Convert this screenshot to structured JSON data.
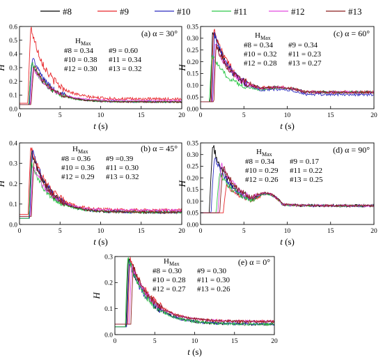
{
  "legend": {
    "entries": [
      {
        "name": "#8",
        "color": "#000000"
      },
      {
        "name": "#9",
        "color": "#e8262a"
      },
      {
        "name": "#10",
        "color": "#2b2bbf"
      },
      {
        "name": "#11",
        "color": "#2fc84a"
      },
      {
        "name": "#12",
        "color": "#e24adf"
      },
      {
        "name": "#13",
        "color": "#8a1c1c"
      }
    ]
  },
  "chart_data": [
    {
      "type": "line",
      "panel": "a",
      "label": "(a) α = 30°",
      "xlabel": "t (s)",
      "ylabel": "H",
      "xlim": [
        0,
        20
      ],
      "ylim": [
        0,
        0.6
      ],
      "xticks": [
        0,
        5,
        10,
        15,
        20
      ],
      "yticks": [
        0.0,
        0.1,
        0.2,
        0.3,
        0.4,
        0.5,
        0.6
      ],
      "annotation": {
        "title": "H",
        "subscript": "Max",
        "lines": [
          "#8 = 0.34",
          "#9 = 0.60",
          "#10 = 0.38",
          "#11 = 0.34",
          "#12 = 0.30",
          "#13 = 0.32"
        ]
      },
      "series": [
        {
          "name": "#8",
          "peak_t": 1.5,
          "peak_h": 0.34,
          "base_h": 0.03,
          "end_h": 0.05
        },
        {
          "name": "#9",
          "peak_t": 1.4,
          "peak_h": 0.6,
          "base_h": 0.04,
          "end_h": 0.07
        },
        {
          "name": "#10",
          "peak_t": 1.6,
          "peak_h": 0.38,
          "base_h": 0.03,
          "end_h": 0.05
        },
        {
          "name": "#11",
          "peak_t": 1.5,
          "peak_h": 0.34,
          "base_h": 0.03,
          "end_h": 0.05
        },
        {
          "name": "#12",
          "peak_t": 1.7,
          "peak_h": 0.3,
          "base_h": 0.03,
          "end_h": 0.06
        },
        {
          "name": "#13",
          "peak_t": 1.8,
          "peak_h": 0.32,
          "base_h": 0.03,
          "end_h": 0.05
        }
      ]
    },
    {
      "type": "line",
      "panel": "c",
      "label": "(c) α = 60°",
      "xlabel": "t (s)",
      "ylabel": "H",
      "xlim": [
        0,
        20
      ],
      "ylim": [
        0,
        0.35
      ],
      "xticks": [
        0,
        5,
        10,
        15,
        20
      ],
      "yticks": [
        0.0,
        0.05,
        0.1,
        0.15,
        0.2,
        0.25,
        0.3,
        0.35
      ],
      "annotation": {
        "title": "H",
        "subscript": "Max",
        "lines": [
          "#8 = 0.34",
          "#9 = 0.34",
          "#10 = 0.32",
          "#11 = 0.23",
          "#12 = 0.28",
          "#13 = 0.27"
        ]
      },
      "series": [
        {
          "name": "#8",
          "peak_t": 1.4,
          "peak_h": 0.34,
          "base_h": 0.03,
          "end_h": 0.07
        },
        {
          "name": "#9",
          "peak_t": 1.5,
          "peak_h": 0.34,
          "base_h": 0.03,
          "end_h": 0.07
        },
        {
          "name": "#10",
          "peak_t": 1.6,
          "peak_h": 0.32,
          "base_h": 0.03,
          "end_h": 0.06
        },
        {
          "name": "#11",
          "peak_t": 1.3,
          "peak_h": 0.23,
          "base_h": 0.03,
          "end_h": 0.07
        },
        {
          "name": "#12",
          "peak_t": 1.7,
          "peak_h": 0.28,
          "base_h": 0.03,
          "end_h": 0.07
        },
        {
          "name": "#13",
          "peak_t": 1.8,
          "peak_h": 0.27,
          "base_h": 0.03,
          "end_h": 0.07
        }
      ]
    },
    {
      "type": "line",
      "panel": "b",
      "label": "(b) α = 45°",
      "xlabel": "t (s)",
      "ylabel": "H",
      "xlim": [
        0,
        20
      ],
      "ylim": [
        0,
        0.4
      ],
      "xticks": [
        0,
        5,
        10,
        15,
        20
      ],
      "yticks": [
        0.0,
        0.1,
        0.2,
        0.3,
        0.4
      ],
      "annotation": {
        "title": "H",
        "subscript": "Max",
        "lines": [
          "#8 = 0.36",
          "#9 =0.39",
          "#10 = 0.36",
          "#11 = 0.30",
          "#12 = 0.29",
          "#13 = 0.32"
        ]
      },
      "series": [
        {
          "name": "#8",
          "peak_t": 1.5,
          "peak_h": 0.36,
          "base_h": 0.03,
          "end_h": 0.06
        },
        {
          "name": "#9",
          "peak_t": 1.4,
          "peak_h": 0.39,
          "base_h": 0.05,
          "end_h": 0.07
        },
        {
          "name": "#10",
          "peak_t": 1.6,
          "peak_h": 0.36,
          "base_h": 0.03,
          "end_h": 0.06
        },
        {
          "name": "#11",
          "peak_t": 1.5,
          "peak_h": 0.3,
          "base_h": 0.03,
          "end_h": 0.06
        },
        {
          "name": "#12",
          "peak_t": 1.7,
          "peak_h": 0.29,
          "base_h": 0.04,
          "end_h": 0.07
        },
        {
          "name": "#13",
          "peak_t": 1.8,
          "peak_h": 0.32,
          "base_h": 0.04,
          "end_h": 0.06
        }
      ]
    },
    {
      "type": "line",
      "panel": "d",
      "label": "(d) α = 90°",
      "xlabel": "t (s)",
      "ylabel": "H",
      "xlim": [
        0,
        20
      ],
      "ylim": [
        0,
        0.35
      ],
      "xticks": [
        0,
        5,
        10,
        15,
        20
      ],
      "yticks": [
        0.0,
        0.05,
        0.1,
        0.15,
        0.2,
        0.25,
        0.3,
        0.35
      ],
      "annotation": {
        "title": "H",
        "subscript": "Max",
        "lines": [
          "#8 = 0.34",
          "#9 = 0.17",
          "#10 = 0.29",
          "#11 = 0.22",
          "#12 = 0.26",
          "#13 = 0.25"
        ]
      },
      "series": [
        {
          "name": "#8",
          "peak_t": 1.4,
          "peak_h": 0.34,
          "base_h": 0.05,
          "end_h": 0.08
        },
        {
          "name": "#9",
          "peak_t": 3.0,
          "peak_h": 0.17,
          "base_h": 0.05,
          "end_h": 0.08
        },
        {
          "name": "#10",
          "peak_t": 1.6,
          "peak_h": 0.29,
          "base_h": 0.05,
          "end_h": 0.08
        },
        {
          "name": "#11",
          "peak_t": 2.2,
          "peak_h": 0.22,
          "base_h": 0.05,
          "end_h": 0.08
        },
        {
          "name": "#12",
          "peak_t": 2.4,
          "peak_h": 0.26,
          "base_h": 0.05,
          "end_h": 0.08
        },
        {
          "name": "#13",
          "peak_t": 2.6,
          "peak_h": 0.25,
          "base_h": 0.05,
          "end_h": 0.08
        }
      ]
    },
    {
      "type": "line",
      "panel": "e",
      "label": "(e) α = 0°",
      "xlabel": "t (s)",
      "ylabel": "H",
      "xlim": [
        0,
        20
      ],
      "ylim": [
        0,
        0.3
      ],
      "xticks": [
        0,
        5,
        10,
        15,
        20
      ],
      "yticks": [
        0.0,
        0.1,
        0.2,
        0.3
      ],
      "annotation": {
        "title": "H",
        "subscript": "Max",
        "lines": [
          "#8 = 0.30",
          "#9 = 0.30",
          "#10 = 0.28",
          "#11 = 0.30",
          "#12 = 0.27",
          "#13 = 0.26"
        ]
      },
      "series": [
        {
          "name": "#8",
          "peak_t": 1.7,
          "peak_h": 0.3,
          "base_h": 0.03,
          "end_h": 0.04
        },
        {
          "name": "#9",
          "peak_t": 1.9,
          "peak_h": 0.3,
          "base_h": 0.04,
          "end_h": 0.05
        },
        {
          "name": "#10",
          "peak_t": 1.8,
          "peak_h": 0.28,
          "base_h": 0.03,
          "end_h": 0.04
        },
        {
          "name": "#11",
          "peak_t": 1.6,
          "peak_h": 0.3,
          "base_h": 0.03,
          "end_h": 0.04
        },
        {
          "name": "#12",
          "peak_t": 2.1,
          "peak_h": 0.27,
          "base_h": 0.04,
          "end_h": 0.05
        },
        {
          "name": "#13",
          "peak_t": 2.3,
          "peak_h": 0.26,
          "base_h": 0.04,
          "end_h": 0.05
        }
      ]
    }
  ]
}
